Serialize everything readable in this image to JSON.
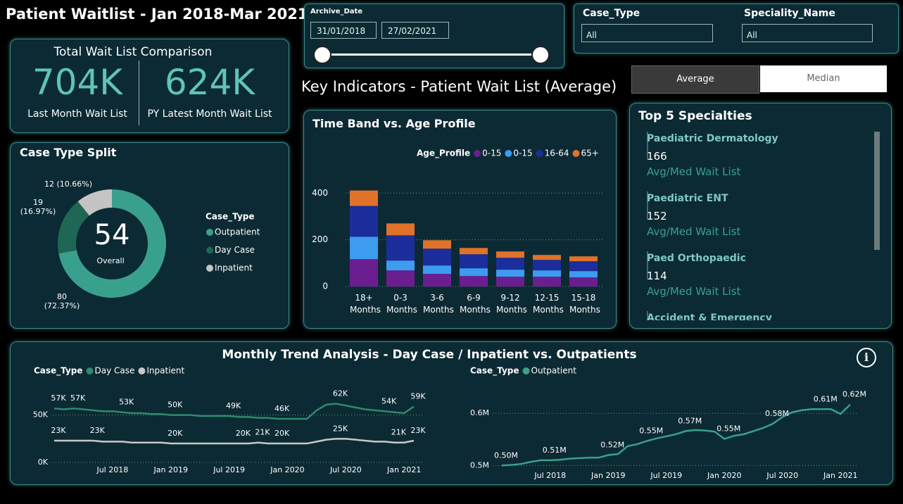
{
  "header": {
    "title": "Patient Waitlist - Jan 2018-Mar 2021",
    "subtitle": "Key Indicators - Patient Wait List (Average)"
  },
  "filters": {
    "archive_date": {
      "label": "Archive_Date",
      "start": "31/01/2018",
      "end": "27/02/2021"
    },
    "case_type": {
      "label": "Case_Type",
      "value": "All"
    },
    "speciality_name": {
      "label": "Speciality_Name",
      "value": "All"
    }
  },
  "toggle": {
    "options": [
      "Average",
      "Median"
    ]
  },
  "kpi_card": {
    "title": "Total Wait List Comparison",
    "items": [
      {
        "value": "704K",
        "label": "Last Month Wait List"
      },
      {
        "value": "624K",
        "label": "PY Latest Month Wait List"
      }
    ]
  },
  "top_specialties": {
    "title": "Top 5 Specialties",
    "items": [
      {
        "name": "Paediatric Dermatology",
        "value": 166,
        "caption": "Avg/Med Wait List"
      },
      {
        "name": "Paediatric ENT",
        "value": 152,
        "caption": "Avg/Med Wait List"
      },
      {
        "name": "Paed Orthopaedic",
        "value": 114,
        "caption": "Avg/Med Wait List"
      },
      {
        "name": "Accident & Emergency"
      }
    ]
  },
  "trend_panel": {
    "title": "Monthly Trend Analysis - Day Case / Inpatient vs. Outpatients"
  },
  "chart_data": [
    {
      "type": "donut",
      "title": "Case Type Split",
      "categories": [
        "Outpatient",
        "Day Case",
        "Inpatient"
      ],
      "values": [
        80,
        19,
        12
      ],
      "value_labels": [
        "80 (72.37%)",
        "19 (16.97%)",
        "12 (10.66%)"
      ],
      "colors": [
        "#3aa08e",
        "#1f6654",
        "#c4c4c4"
      ],
      "center_value": 54,
      "center_label": "Overall",
      "legend_title": "Case_Type",
      "legend": "right"
    },
    {
      "type": "stacked_bar",
      "title": "Time Band vs. Age Profile",
      "categories": [
        "18+ Months",
        "0-3 Months",
        "3-6 Months",
        "6-9 Months",
        "9-12 Months",
        "12-15 Months",
        "15-18 Months"
      ],
      "legend_title": "Age_Profile",
      "legend": "top",
      "ylim": [
        0,
        440
      ],
      "yticks": [
        0,
        200,
        400
      ],
      "grid": true,
      "series": [
        {
          "name": "0-15",
          "color": "#6b1e8f",
          "values": [
            117,
            69,
            54,
            45,
            42,
            42,
            39
          ]
        },
        {
          "name": "0-15",
          "color": "#3d9bf0",
          "values": [
            96,
            42,
            36,
            33,
            30,
            27,
            27
          ]
        },
        {
          "name": "16-64",
          "color": "#1c2d9c",
          "values": [
            132,
            108,
            72,
            60,
            51,
            45,
            42
          ]
        },
        {
          "name": "65+",
          "color": "#e0722a",
          "values": [
            66,
            51,
            36,
            27,
            27,
            21,
            21
          ]
        }
      ]
    },
    {
      "type": "line",
      "x": [
        "2018-01",
        "2018-02",
        "2018-03",
        "2018-04",
        "2018-05",
        "2018-06",
        "2018-07",
        "2018-08",
        "2018-09",
        "2018-10",
        "2018-11",
        "2018-12",
        "2019-01",
        "2019-02",
        "2019-03",
        "2019-04",
        "2019-05",
        "2019-06",
        "2019-07",
        "2019-08",
        "2019-09",
        "2019-10",
        "2019-11",
        "2019-12",
        "2020-01",
        "2020-02",
        "2020-03",
        "2020-04",
        "2020-05",
        "2020-06",
        "2020-07",
        "2020-08",
        "2020-09",
        "2020-10",
        "2020-11",
        "2020-12",
        "2021-01",
        "2021-02"
      ],
      "xlim": [
        "2018-01",
        "2021-02"
      ],
      "xticks": [
        {
          "value": "2018-07",
          "label": "Jul 2018"
        },
        {
          "value": "2019-01",
          "label": "Jan 2019"
        },
        {
          "value": "2019-07",
          "label": "Jul 2019"
        },
        {
          "value": "2020-01",
          "label": "Jan 2020"
        },
        {
          "value": "2020-07",
          "label": "Jul 2020"
        },
        {
          "value": "2021-01",
          "label": "Jan 2021"
        }
      ],
      "ylim": [
        0,
        72000
      ],
      "yticks": [
        {
          "value": 0,
          "label": "0K"
        },
        {
          "value": 50000,
          "label": "50K"
        }
      ],
      "grid": true,
      "legend_title": "Case_Type",
      "legend": "top-left",
      "series": [
        {
          "name": "Day Case",
          "color": "#2f8a6e",
          "values": [
            57000,
            56000,
            57000,
            56000,
            55000,
            54000,
            54000,
            53000,
            52000,
            52000,
            51000,
            51000,
            50000,
            50000,
            50000,
            49000,
            49000,
            49000,
            49000,
            48000,
            48000,
            47000,
            47000,
            46000,
            46000,
            46000,
            46000,
            55000,
            61000,
            62000,
            60000,
            58000,
            56000,
            55000,
            54000,
            53000,
            52000,
            59000
          ],
          "value_labels": [
            "57K",
            null,
            "57K",
            null,
            null,
            null,
            null,
            "53K",
            null,
            null,
            null,
            null,
            "50K",
            null,
            null,
            null,
            null,
            null,
            "49K",
            null,
            null,
            null,
            null,
            "46K",
            null,
            null,
            null,
            null,
            null,
            "62K",
            null,
            null,
            null,
            null,
            "54K",
            null,
            null,
            "59K"
          ]
        },
        {
          "name": "Inpatient",
          "color": "#c8c8c8",
          "values": [
            23000,
            23000,
            23000,
            23000,
            23000,
            22000,
            22000,
            22000,
            21000,
            21000,
            21000,
            21000,
            20000,
            20000,
            20000,
            20000,
            20000,
            20000,
            20000,
            20000,
            20000,
            21000,
            20000,
            20000,
            20000,
            20000,
            20000,
            22000,
            24000,
            25000,
            25000,
            24000,
            23000,
            22000,
            22000,
            21000,
            21000,
            23000
          ],
          "value_labels": [
            "23K",
            null,
            null,
            null,
            "23K",
            null,
            null,
            null,
            null,
            null,
            null,
            null,
            "20K",
            null,
            null,
            null,
            null,
            null,
            null,
            "20K",
            null,
            "21K",
            null,
            "20K",
            null,
            null,
            null,
            null,
            null,
            "25K",
            null,
            null,
            null,
            null,
            null,
            "21K",
            null,
            "23K"
          ]
        }
      ]
    },
    {
      "type": "line",
      "x": [
        "2018-02",
        "2018-03",
        "2018-04",
        "2018-05",
        "2018-06",
        "2018-07",
        "2018-08",
        "2018-09",
        "2018-10",
        "2018-11",
        "2018-12",
        "2019-01",
        "2019-02",
        "2019-03",
        "2019-04",
        "2019-05",
        "2019-06",
        "2019-07",
        "2019-08",
        "2019-09",
        "2019-10",
        "2019-11",
        "2019-12",
        "2020-01",
        "2020-02",
        "2020-03",
        "2020-04",
        "2020-05",
        "2020-06",
        "2020-07",
        "2020-08",
        "2020-09",
        "2020-10",
        "2020-11",
        "2020-12",
        "2021-01",
        "2021-02"
      ],
      "xlim": [
        "2018-02",
        "2021-02"
      ],
      "xticks": [
        {
          "value": "2018-07",
          "label": "Jul 2018"
        },
        {
          "value": "2019-01",
          "label": "Jan 2019"
        },
        {
          "value": "2019-07",
          "label": "Jul 2019"
        },
        {
          "value": "2020-01",
          "label": "Jan 2020"
        },
        {
          "value": "2020-07",
          "label": "Jul 2020"
        },
        {
          "value": "2021-01",
          "label": "Jan 2021"
        }
      ],
      "ylim": [
        495000,
        630000
      ],
      "yticks": [
        {
          "value": 500000,
          "label": "0.5M"
        },
        {
          "value": 600000,
          "label": "0.6M"
        }
      ],
      "grid": true,
      "legend_title": "Case_Type",
      "legend": "top-left",
      "series": [
        {
          "name": "Outpatient",
          "color": "#3aa08e",
          "values": [
            500000,
            501000,
            503000,
            507000,
            510000,
            510000,
            511000,
            513000,
            514000,
            515000,
            515000,
            520000,
            522000,
            537000,
            541000,
            547000,
            552000,
            556000,
            560000,
            566000,
            568000,
            567000,
            565000,
            551000,
            557000,
            560000,
            566000,
            572000,
            580000,
            593000,
            602000,
            606000,
            608000,
            608000,
            608000,
            599000,
            617000
          ],
          "value_labels": [
            "0.50M",
            null,
            null,
            null,
            null,
            "0.51M",
            null,
            null,
            null,
            null,
            null,
            "0.52M",
            null,
            null,
            null,
            "0.55M",
            null,
            null,
            null,
            "0.57M",
            null,
            null,
            null,
            "0.55M",
            null,
            null,
            null,
            null,
            "0.58M",
            null,
            null,
            null,
            null,
            "0.61M",
            null,
            null,
            "0.62M"
          ]
        }
      ]
    }
  ]
}
